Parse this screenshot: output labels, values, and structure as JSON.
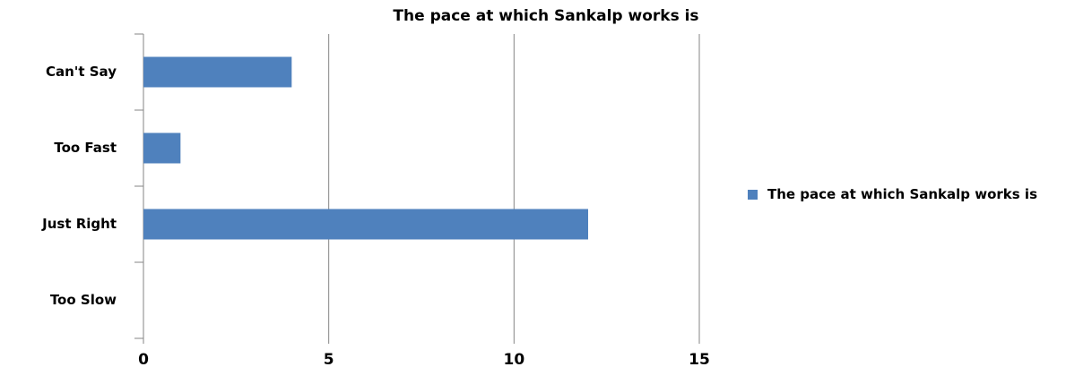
{
  "chart_data": {
    "type": "bar",
    "orientation": "horizontal",
    "title": "The pace at which Sankalp works is",
    "categories": [
      "Can't Say",
      "Too Fast",
      "Just Right",
      "Too Slow"
    ],
    "series": [
      {
        "name": "The pace at which Sankalp works is",
        "color": "#4f81bd",
        "values": [
          4,
          1,
          12,
          0
        ]
      }
    ],
    "xlim": [
      0,
      15
    ],
    "xticks": [
      0,
      5,
      10,
      15
    ],
    "grid": true,
    "legend": "right"
  }
}
